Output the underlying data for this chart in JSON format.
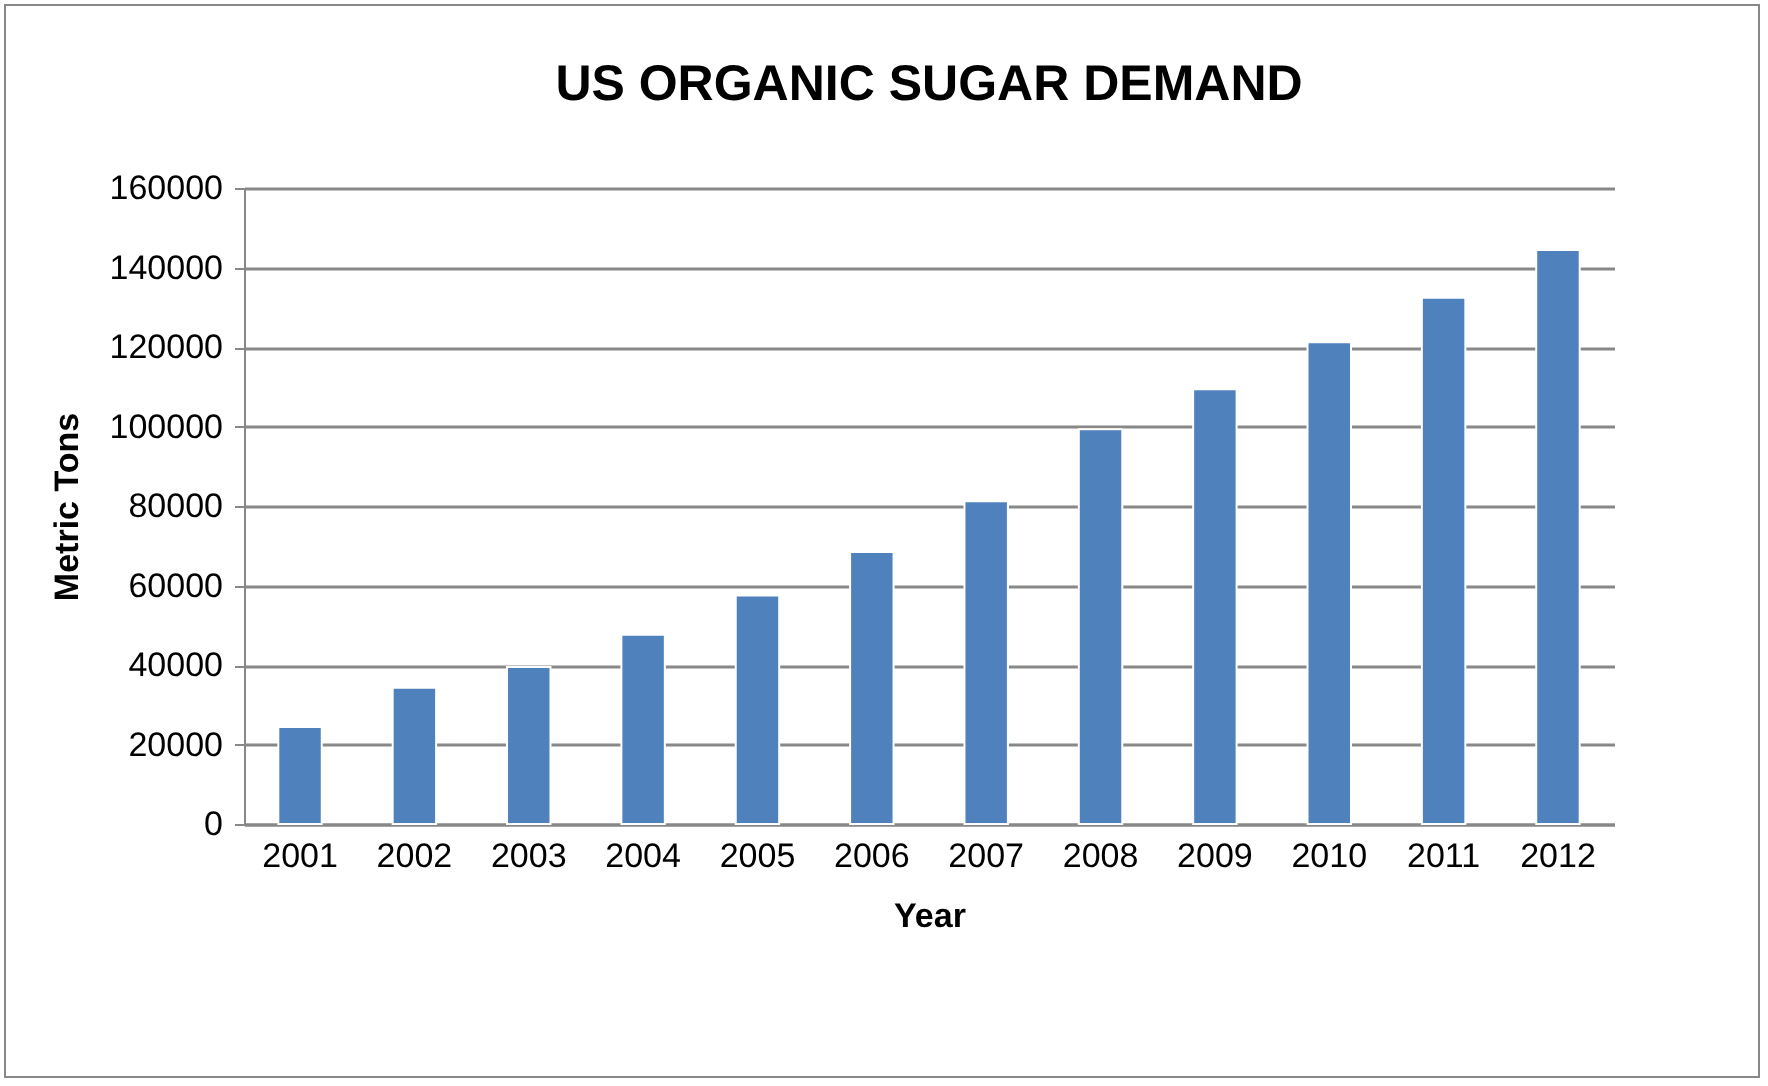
{
  "chart_data": {
    "type": "bar",
    "title": "US ORGANIC SUGAR DEMAND",
    "xlabel": "Year",
    "ylabel": "Metric Tons",
    "categories": [
      "2001",
      "2002",
      "2003",
      "2004",
      "2005",
      "2006",
      "2007",
      "2008",
      "2009",
      "2010",
      "2011",
      "2012"
    ],
    "values": [
      24400,
      34300,
      39500,
      47600,
      57500,
      68400,
      81200,
      99300,
      109400,
      121200,
      132400,
      144400
    ],
    "color": "#4f81bd",
    "ylim": [
      0,
      160000
    ],
    "yticks": [
      0,
      20000,
      40000,
      60000,
      80000,
      100000,
      120000,
      140000,
      160000
    ],
    "grid": "y"
  }
}
